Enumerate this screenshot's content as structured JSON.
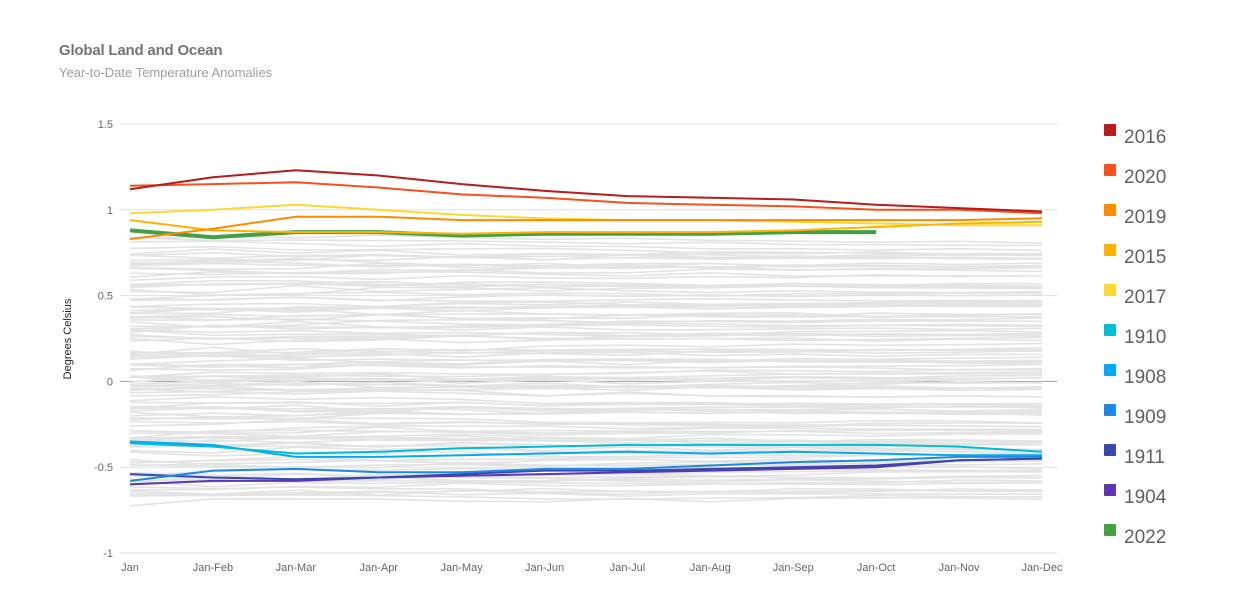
{
  "chart_data": {
    "type": "line",
    "title": "Global Land and Ocean",
    "subtitle": "Year-to-Date Temperature Anomalies",
    "ylabel": "Degrees Celsius",
    "xlabel": "",
    "ylim": [
      -1,
      1.5
    ],
    "yticks": [
      -1,
      -0.5,
      0,
      0.5,
      1,
      1.5
    ],
    "grid": true,
    "legend_position": "right",
    "categories": [
      "Jan",
      "Jan-Feb",
      "Jan-Mar",
      "Jan-Apr",
      "Jan-May",
      "Jan-Jun",
      "Jan-Jul",
      "Jan-Aug",
      "Jan-Sep",
      "Jan-Oct",
      "Jan-Nov",
      "Jan-Dec"
    ],
    "series": [
      {
        "name": "2016",
        "color": "#b71c1c",
        "values": [
          1.12,
          1.19,
          1.23,
          1.2,
          1.15,
          1.11,
          1.08,
          1.07,
          1.06,
          1.03,
          1.01,
          0.99
        ]
      },
      {
        "name": "2020",
        "color": "#f4511e",
        "values": [
          1.14,
          1.15,
          1.16,
          1.13,
          1.09,
          1.07,
          1.04,
          1.03,
          1.02,
          1.0,
          1.0,
          0.98
        ]
      },
      {
        "name": "2019",
        "color": "#fb8c00",
        "values": [
          0.83,
          0.89,
          0.96,
          0.96,
          0.94,
          0.94,
          0.94,
          0.94,
          0.94,
          0.94,
          0.94,
          0.95
        ]
      },
      {
        "name": "2015",
        "color": "#ffb300",
        "values": [
          0.94,
          0.88,
          0.87,
          0.87,
          0.86,
          0.87,
          0.87,
          0.87,
          0.88,
          0.9,
          0.92,
          0.93
        ]
      },
      {
        "name": "2017",
        "color": "#fdd835",
        "values": [
          0.98,
          1.0,
          1.03,
          1.0,
          0.97,
          0.95,
          0.94,
          0.94,
          0.93,
          0.92,
          0.91,
          0.91
        ]
      },
      {
        "name": "1910",
        "color": "#00bcd4",
        "values": [
          -0.36,
          -0.38,
          -0.42,
          -0.41,
          -0.39,
          -0.38,
          -0.37,
          -0.37,
          -0.37,
          -0.37,
          -0.38,
          -0.41
        ]
      },
      {
        "name": "1908",
        "color": "#03a9f4",
        "values": [
          -0.35,
          -0.37,
          -0.44,
          -0.44,
          -0.43,
          -0.42,
          -0.41,
          -0.42,
          -0.41,
          -0.42,
          -0.43,
          -0.43
        ]
      },
      {
        "name": "1909",
        "color": "#1e88e5",
        "values": [
          -0.58,
          -0.52,
          -0.51,
          -0.53,
          -0.53,
          -0.51,
          -0.51,
          -0.49,
          -0.47,
          -0.46,
          -0.44,
          -0.44
        ]
      },
      {
        "name": "1911",
        "color": "#3949ab",
        "values": [
          -0.54,
          -0.56,
          -0.57,
          -0.56,
          -0.54,
          -0.52,
          -0.52,
          -0.51,
          -0.5,
          -0.49,
          -0.46,
          -0.45
        ]
      },
      {
        "name": "1904",
        "color": "#5e35b1",
        "values": [
          -0.6,
          -0.58,
          -0.58,
          -0.56,
          -0.55,
          -0.54,
          -0.53,
          -0.52,
          -0.51,
          -0.5,
          -0.46,
          -0.45
        ]
      },
      {
        "name": "2022",
        "color": "#43a047",
        "values": [
          0.88,
          0.84,
          0.87,
          0.87,
          0.85,
          0.86,
          0.86,
          0.86,
          0.87,
          0.87,
          null,
          null
        ]
      }
    ]
  }
}
